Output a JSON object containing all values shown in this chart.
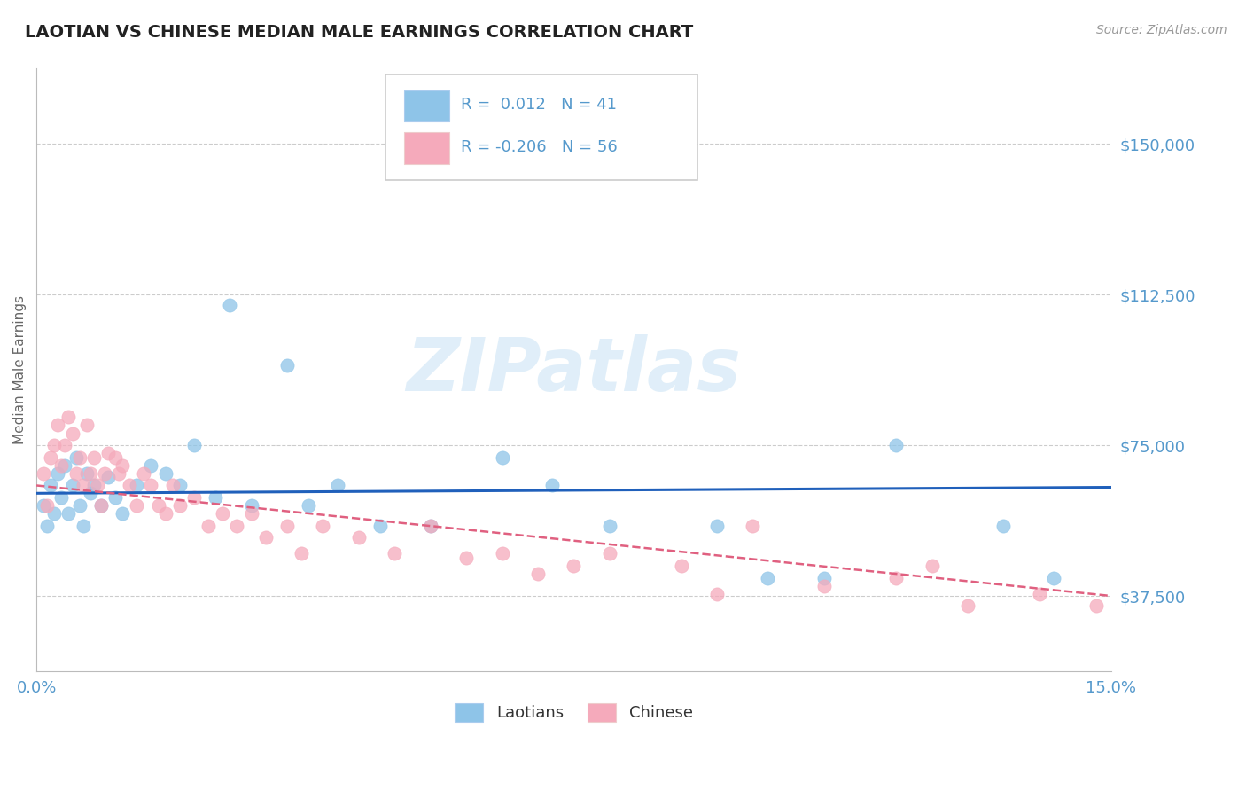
{
  "title": "LAOTIAN VS CHINESE MEDIAN MALE EARNINGS CORRELATION CHART",
  "source": "Source: ZipAtlas.com",
  "ylabel": "Median Male Earnings",
  "xlim": [
    0.0,
    15.0
  ],
  "ylim": [
    18750,
    168750
  ],
  "yticks": [
    37500,
    75000,
    112500,
    150000
  ],
  "ytick_labels": [
    "$37,500",
    "$75,000",
    "$112,500",
    "$150,000"
  ],
  "xtick_show": [
    "0.0%",
    "15.0%"
  ],
  "laotian_color": "#8ec4e8",
  "chinese_color": "#f5aabb",
  "trend_laotian_color": "#2060bb",
  "trend_chinese_color": "#e06080",
  "background_color": "#ffffff",
  "grid_color": "#cccccc",
  "label_color": "#5599cc",
  "title_color": "#222222",
  "laotian_R": 0.012,
  "laotian_N": 41,
  "chinese_R": -0.206,
  "chinese_N": 56,
  "watermark": "ZIPatlas",
  "laotian_x": [
    0.1,
    0.15,
    0.2,
    0.25,
    0.3,
    0.35,
    0.4,
    0.45,
    0.5,
    0.55,
    0.6,
    0.65,
    0.7,
    0.75,
    0.8,
    0.9,
    1.0,
    1.1,
    1.2,
    1.4,
    1.6,
    1.8,
    2.0,
    2.2,
    2.5,
    2.7,
    3.0,
    3.5,
    3.8,
    4.2,
    4.8,
    5.5,
    6.5,
    7.2,
    8.0,
    9.5,
    10.2,
    11.0,
    12.0,
    13.5,
    14.2
  ],
  "laotian_y": [
    60000,
    55000,
    65000,
    58000,
    68000,
    62000,
    70000,
    58000,
    65000,
    72000,
    60000,
    55000,
    68000,
    63000,
    65000,
    60000,
    67000,
    62000,
    58000,
    65000,
    70000,
    68000,
    65000,
    75000,
    62000,
    110000,
    60000,
    95000,
    60000,
    65000,
    55000,
    55000,
    72000,
    65000,
    55000,
    55000,
    42000,
    42000,
    75000,
    55000,
    42000
  ],
  "chinese_x": [
    0.1,
    0.15,
    0.2,
    0.25,
    0.3,
    0.35,
    0.4,
    0.45,
    0.5,
    0.55,
    0.6,
    0.65,
    0.7,
    0.75,
    0.8,
    0.85,
    0.9,
    0.95,
    1.0,
    1.1,
    1.15,
    1.2,
    1.3,
    1.4,
    1.5,
    1.6,
    1.7,
    1.8,
    1.9,
    2.0,
    2.2,
    2.4,
    2.6,
    2.8,
    3.0,
    3.2,
    3.5,
    3.7,
    4.0,
    4.5,
    5.0,
    5.5,
    6.0,
    6.5,
    7.0,
    7.5,
    8.0,
    9.0,
    9.5,
    10.0,
    11.0,
    12.0,
    12.5,
    13.0,
    14.0,
    14.8
  ],
  "chinese_y": [
    68000,
    60000,
    72000,
    75000,
    80000,
    70000,
    75000,
    82000,
    78000,
    68000,
    72000,
    65000,
    80000,
    68000,
    72000,
    65000,
    60000,
    68000,
    73000,
    72000,
    68000,
    70000,
    65000,
    60000,
    68000,
    65000,
    60000,
    58000,
    65000,
    60000,
    62000,
    55000,
    58000,
    55000,
    58000,
    52000,
    55000,
    48000,
    55000,
    52000,
    48000,
    55000,
    47000,
    48000,
    43000,
    45000,
    48000,
    45000,
    38000,
    55000,
    40000,
    42000,
    45000,
    35000,
    38000,
    35000
  ]
}
